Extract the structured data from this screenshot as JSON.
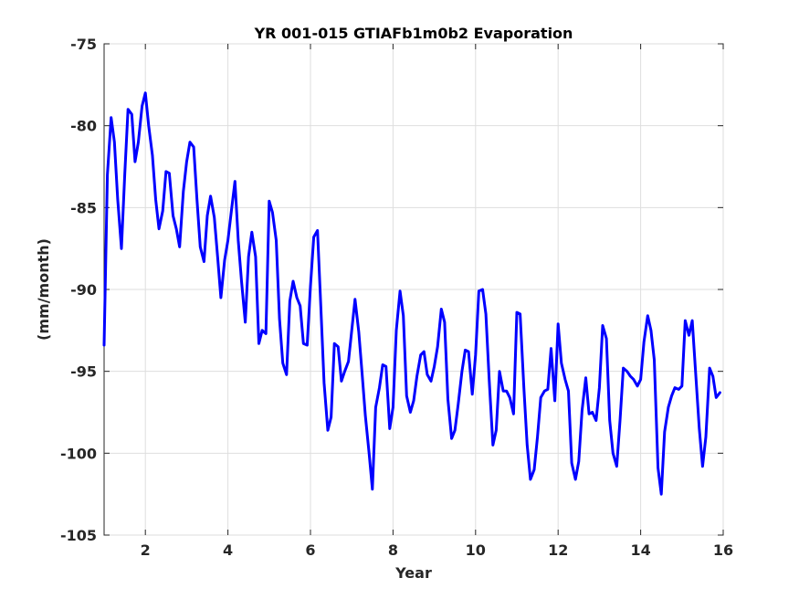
{
  "chart_data": {
    "type": "line",
    "title": "YR 001-015 GTIAFb1m0b2 Evaporation",
    "xlabel": "Year",
    "ylabel": "(mm/month)",
    "xlim": [
      1,
      16
    ],
    "ylim": [
      -105,
      -75
    ],
    "xticks": [
      2,
      4,
      6,
      8,
      10,
      12,
      14,
      16
    ],
    "yticks": [
      -105,
      -100,
      -95,
      -90,
      -85,
      -80,
      -75
    ],
    "grid": true,
    "legend": "none",
    "series": [
      {
        "color": "#0000ff",
        "x": [
          1.0,
          1.08,
          1.17,
          1.25,
          1.33,
          1.42,
          1.5,
          1.58,
          1.67,
          1.75,
          1.83,
          1.92,
          2.0,
          2.08,
          2.17,
          2.25,
          2.33,
          2.42,
          2.5,
          2.58,
          2.67,
          2.75,
          2.83,
          2.92,
          3.0,
          3.08,
          3.17,
          3.25,
          3.33,
          3.42,
          3.5,
          3.58,
          3.67,
          3.75,
          3.83,
          3.92,
          4.0,
          4.08,
          4.17,
          4.25,
          4.33,
          4.42,
          4.5,
          4.58,
          4.67,
          4.75,
          4.83,
          4.92,
          5.0,
          5.08,
          5.17,
          5.25,
          5.33,
          5.42,
          5.5,
          5.58,
          5.67,
          5.75,
          5.83,
          5.92,
          6.0,
          6.08,
          6.17,
          6.25,
          6.33,
          6.42,
          6.5,
          6.58,
          6.67,
          6.75,
          6.83,
          6.92,
          7.0,
          7.08,
          7.17,
          7.25,
          7.33,
          7.42,
          7.5,
          7.58,
          7.67,
          7.75,
          7.83,
          7.92,
          8.0,
          8.08,
          8.17,
          8.25,
          8.33,
          8.42,
          8.5,
          8.58,
          8.67,
          8.75,
          8.83,
          8.92,
          9.0,
          9.08,
          9.17,
          9.25,
          9.33,
          9.42,
          9.5,
          9.58,
          9.67,
          9.75,
          9.83,
          9.92,
          10.0,
          10.08,
          10.17,
          10.25,
          10.33,
          10.42,
          10.5,
          10.58,
          10.67,
          10.75,
          10.83,
          10.92,
          11.0,
          11.08,
          11.17,
          11.25,
          11.33,
          11.42,
          11.5,
          11.58,
          11.67,
          11.75,
          11.83,
          11.92,
          12.0,
          12.08,
          12.17,
          12.25,
          12.33,
          12.42,
          12.5,
          12.58,
          12.67,
          12.75,
          12.83,
          12.92,
          13.0,
          13.08,
          13.17,
          13.25,
          13.33,
          13.42,
          13.5,
          13.58,
          13.67,
          13.75,
          13.83,
          13.92,
          14.0,
          14.08,
          14.17,
          14.25,
          14.33,
          14.42,
          14.5,
          14.58,
          14.67,
          14.75,
          14.83,
          14.92,
          15.0,
          15.08,
          15.17,
          15.25,
          15.33,
          15.42,
          15.5,
          15.58,
          15.67,
          15.75,
          15.83,
          15.92
        ],
        "y": [
          -93.4,
          -83.0,
          -79.5,
          -81.0,
          -84.5,
          -87.5,
          -83.0,
          -79.0,
          -79.3,
          -82.2,
          -81.0,
          -78.8,
          -78.0,
          -80.0,
          -81.8,
          -84.5,
          -86.3,
          -85.2,
          -82.8,
          -82.9,
          -85.5,
          -86.3,
          -87.4,
          -84.0,
          -82.2,
          -81.0,
          -81.3,
          -84.5,
          -87.4,
          -88.3,
          -85.5,
          -84.3,
          -85.6,
          -88.0,
          -90.5,
          -88.2,
          -87.0,
          -85.3,
          -83.4,
          -87.0,
          -89.5,
          -92.0,
          -88.0,
          -86.5,
          -88.0,
          -93.3,
          -92.5,
          -92.7,
          -84.6,
          -85.3,
          -87.0,
          -91.8,
          -94.5,
          -95.2,
          -90.7,
          -89.5,
          -90.5,
          -91.0,
          -93.3,
          -93.4,
          -89.8,
          -86.8,
          -86.4,
          -91.0,
          -95.7,
          -98.6,
          -97.8,
          -93.3,
          -93.5,
          -95.6,
          -95.0,
          -94.4,
          -92.5,
          -90.6,
          -92.6,
          -95.1,
          -97.7,
          -100.0,
          -102.2,
          -97.2,
          -96.0,
          -94.6,
          -94.7,
          -98.5,
          -97.2,
          -92.5,
          -90.1,
          -91.6,
          -96.5,
          -97.5,
          -96.8,
          -95.3,
          -94.0,
          -93.8,
          -95.2,
          -95.6,
          -94.7,
          -93.5,
          -91.2,
          -92.0,
          -96.7,
          -99.1,
          -98.6,
          -97.0,
          -95.0,
          -93.7,
          -93.8,
          -96.4,
          -94.0,
          -90.1,
          -90.0,
          -91.5,
          -95.5,
          -99.5,
          -98.6,
          -95.0,
          -96.2,
          -96.2,
          -96.6,
          -97.6,
          -91.4,
          -91.5,
          -96.0,
          -99.5,
          -101.6,
          -101.0,
          -99.0,
          -96.6,
          -96.2,
          -96.1,
          -93.6,
          -96.8,
          -92.1,
          -94.5,
          -95.5,
          -96.2,
          -100.6,
          -101.6,
          -100.5,
          -97.4,
          -95.4,
          -97.6,
          -97.5,
          -98.0,
          -96.0,
          -92.2,
          -93.0,
          -98.0,
          -100.0,
          -100.8,
          -98.0,
          -94.8,
          -95.0,
          -95.3,
          -95.5,
          -95.9,
          -95.5,
          -93.2,
          -91.6,
          -92.5,
          -94.3,
          -100.9,
          -102.5,
          -98.7,
          -97.2,
          -96.5,
          -96.0,
          -96.1,
          -95.9,
          -91.9,
          -92.8,
          -91.9,
          -95.0,
          -98.5,
          -100.8,
          -99.0,
          -94.8,
          -95.3,
          -96.6,
          -96.3
        ]
      }
    ]
  }
}
